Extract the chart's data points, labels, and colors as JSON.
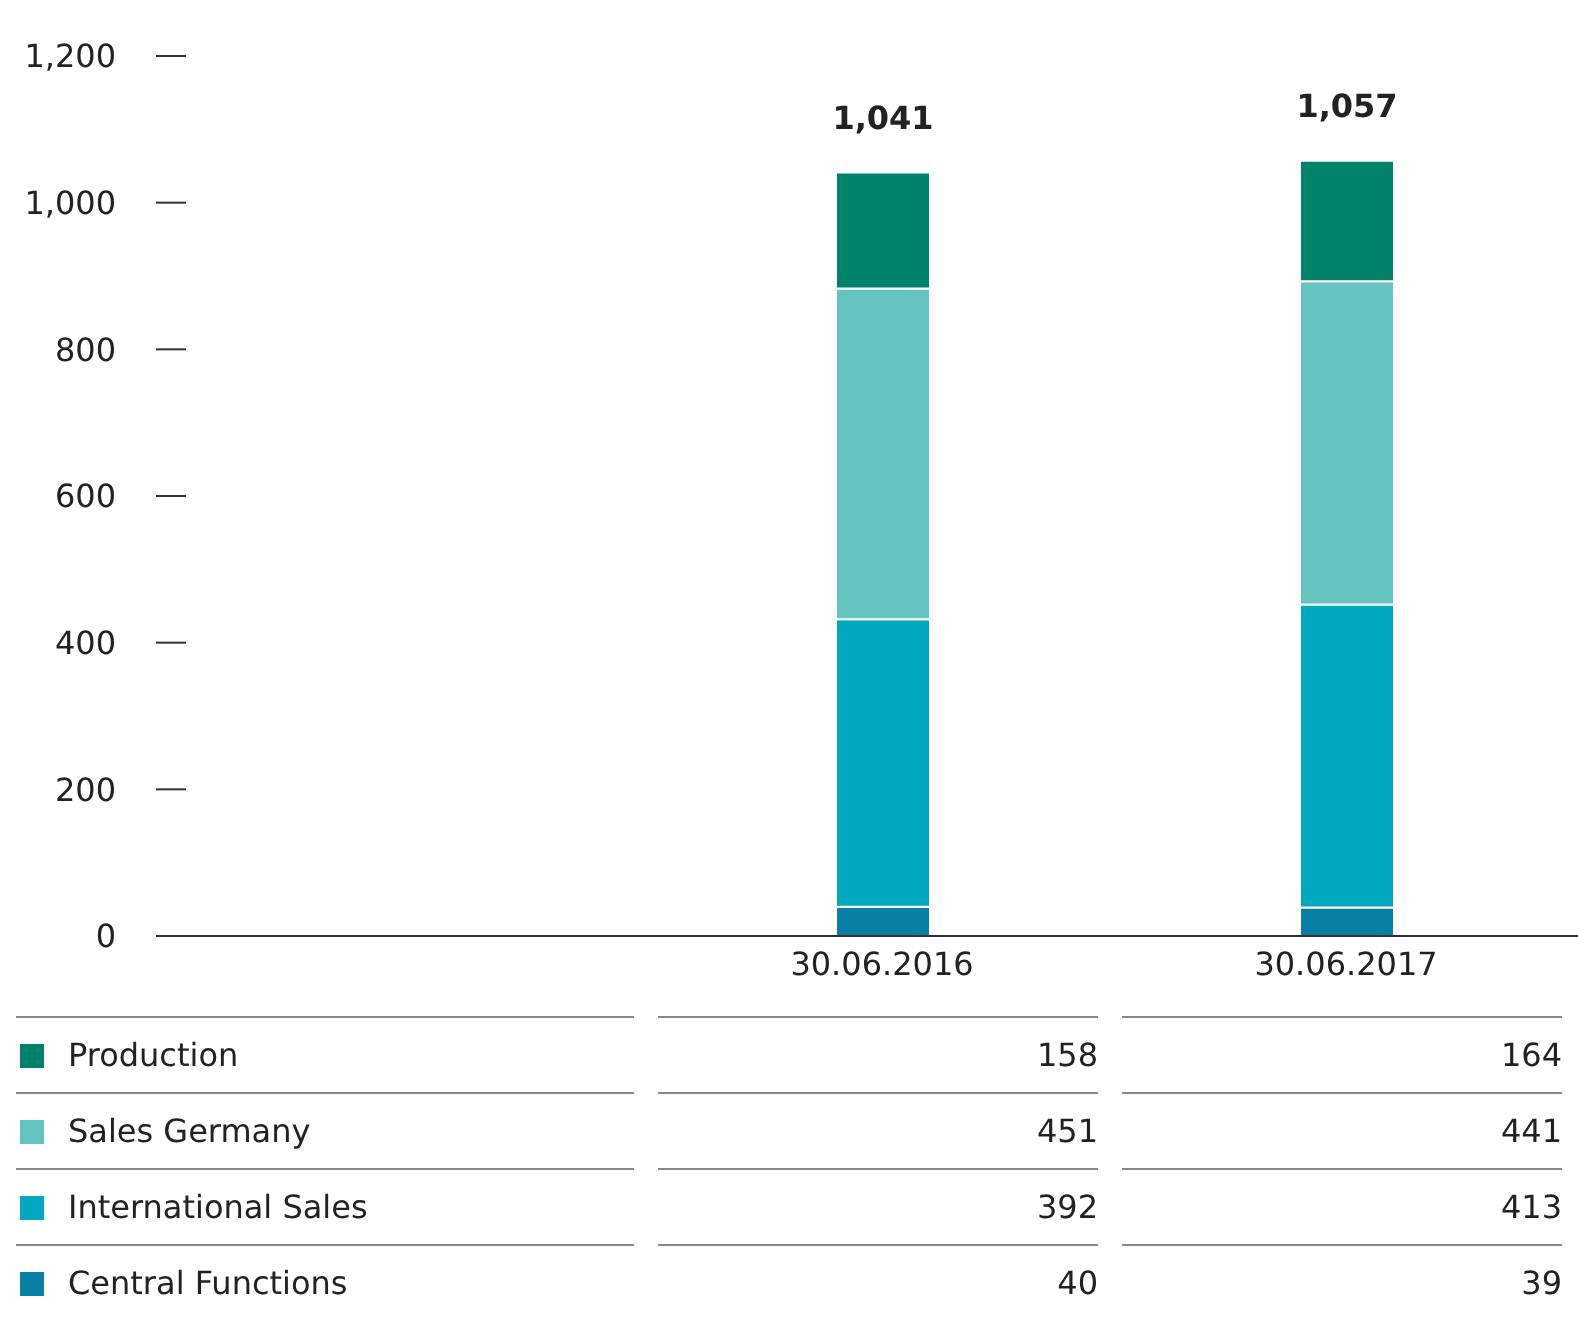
{
  "chart_data": {
    "type": "bar",
    "stacked": true,
    "categories": [
      null,
      "30.06.2016",
      "30.06.2017"
    ],
    "series": [
      {
        "name": "Central Functions",
        "color": "#0a7fa6",
        "values": [
          null,
          40,
          39
        ]
      },
      {
        "name": "International Sales",
        "color": "#00a8c2",
        "values": [
          null,
          392,
          413
        ]
      },
      {
        "name": "Sales Germany",
        "color": "#66c4c0",
        "values": [
          null,
          451,
          441
        ]
      },
      {
        "name": "Production",
        "color": "#00826b",
        "values": [
          null,
          158,
          164
        ]
      }
    ],
    "totals": [
      null,
      "1,041",
      "1,057"
    ],
    "ylim": [
      0,
      1200
    ],
    "yticks": [
      0,
      {
        "value": 200,
        "label": "200"
      },
      {
        "value": 400,
        "label": "400"
      },
      {
        "value": 600,
        "label": "600"
      },
      {
        "value": 800,
        "label": "800"
      },
      {
        "value": 1000,
        "label": "1,000"
      },
      {
        "value": 1200,
        "label": "1,200"
      }
    ],
    "grid": false,
    "legend": "bottom",
    "data_labels": true
  }
}
